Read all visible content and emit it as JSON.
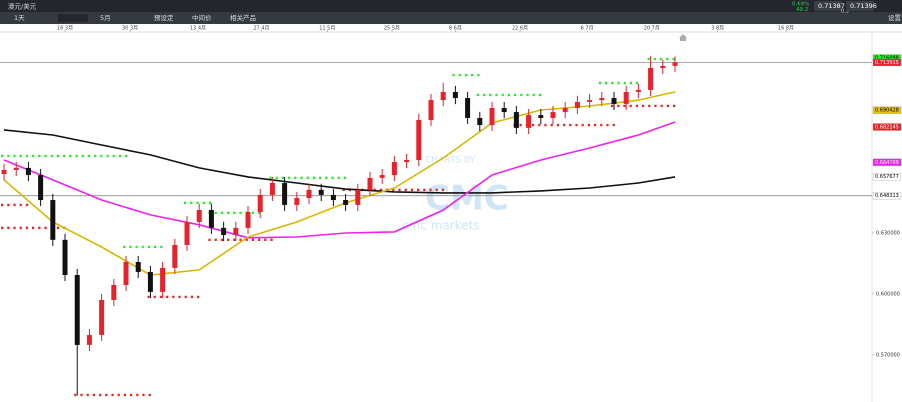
{
  "window": {
    "title": "澳元/美元",
    "change": "0.69%",
    "change_points": "49.2",
    "spread": "0.9",
    "sell": "0.71387",
    "buy": "0.71396",
    "settings": "设置"
  },
  "toolbar": {
    "interval": "1天",
    "range": "5月",
    "items": [
      "预设定",
      "中间价",
      "相关产品"
    ]
  },
  "watermark": {
    "line1": "CHARTS BY",
    "line2": "CMC",
    "line3": "cmc markets"
  },
  "chart_data": {
    "type": "candlestick",
    "xlim": [
      -0.33,
      71.15
    ],
    "xticks": [
      {
        "value": 5.0,
        "label": "16 3月"
      },
      {
        "value": 10.33,
        "label": "30 3月"
      },
      {
        "value": 15.9,
        "label": "13 4月"
      },
      {
        "value": 21.1,
        "label": "27 4月"
      },
      {
        "value": 26.5,
        "label": "11 5月"
      },
      {
        "value": 31.8,
        "label": "25 5月"
      },
      {
        "value": 37.0,
        "label": "8 6月"
      },
      {
        "value": 42.3,
        "label": "22 6月"
      },
      {
        "value": 47.8,
        "label": "6 7月"
      },
      {
        "value": 53.1,
        "label": "20 7月"
      },
      {
        "value": 58.5,
        "label": "3 8月"
      },
      {
        "value": 64.1,
        "label": "16 8月"
      }
    ],
    "ylim": [
      0.5468,
      0.7289
    ],
    "yticks": [
      {
        "value": 0.63,
        "label": "0.630000"
      },
      {
        "value": 0.6,
        "label": "0.600000"
      },
      {
        "value": 0.57,
        "label": "0.570000"
      }
    ],
    "up_color": "#e8222a",
    "down_color": "#111111",
    "open": [
      0.659,
      0.661,
      0.662,
      0.6585,
      0.6462,
      0.6266,
      0.6093,
      0.5749,
      0.5798,
      0.597,
      0.6044,
      0.6157,
      0.6108,
      0.601,
      0.6128,
      0.6241,
      0.6354,
      0.6413,
      0.6325,
      0.629,
      0.6325,
      0.6403,
      0.6487,
      0.6546,
      0.6438,
      0.6472,
      0.6512,
      0.6487,
      0.6462,
      0.6438,
      0.6512,
      0.6571,
      0.6585,
      0.6649,
      0.6659,
      0.6856,
      0.6954,
      0.6994,
      0.6964,
      0.6866,
      0.6831,
      0.6915,
      0.6895,
      0.6817,
      0.688,
      0.6866,
      0.6895,
      0.6915,
      0.6945,
      0.6954,
      0.6964,
      0.6935,
      0.6994,
      0.7004,
      0.7112,
      0.7122
    ],
    "high": [
      0.664,
      0.665,
      0.665,
      0.6615,
      0.6492,
      0.6296,
      0.6123,
      0.5828,
      0.6,
      0.6074,
      0.6187,
      0.6187,
      0.6138,
      0.6158,
      0.6271,
      0.6384,
      0.6443,
      0.6443,
      0.6355,
      0.6355,
      0.6433,
      0.6517,
      0.6576,
      0.6576,
      0.6502,
      0.6542,
      0.6542,
      0.6517,
      0.6492,
      0.6542,
      0.6601,
      0.6615,
      0.6679,
      0.6689,
      0.6886,
      0.6984,
      0.704,
      0.7024,
      0.6994,
      0.6896,
      0.6945,
      0.6945,
      0.6925,
      0.691,
      0.691,
      0.6925,
      0.6945,
      0.6975,
      0.6984,
      0.6994,
      0.6994,
      0.7024,
      0.7034,
      0.717,
      0.7152,
      0.7169
    ],
    "low": [
      0.656,
      0.658,
      0.6555,
      0.6432,
      0.6236,
      0.6063,
      0.55,
      0.5719,
      0.5768,
      0.594,
      0.6014,
      0.6078,
      0.598,
      0.598,
      0.6098,
      0.6211,
      0.6324,
      0.6295,
      0.626,
      0.626,
      0.6295,
      0.6373,
      0.6457,
      0.6408,
      0.6408,
      0.6442,
      0.6457,
      0.6432,
      0.6408,
      0.6408,
      0.6482,
      0.6541,
      0.6555,
      0.6619,
      0.6629,
      0.6826,
      0.6924,
      0.6934,
      0.6836,
      0.6801,
      0.6801,
      0.6865,
      0.6787,
      0.6787,
      0.6836,
      0.6836,
      0.6865,
      0.6885,
      0.6915,
      0.6924,
      0.6905,
      0.6905,
      0.6964,
      0.6974,
      0.7082,
      0.7092
    ],
    "close": [
      0.661,
      0.662,
      0.6585,
      0.6462,
      0.6266,
      0.6093,
      0.5749,
      0.5798,
      0.597,
      0.6044,
      0.6157,
      0.6108,
      0.601,
      0.6128,
      0.6241,
      0.6354,
      0.6413,
      0.6325,
      0.629,
      0.6325,
      0.6403,
      0.6487,
      0.6546,
      0.6438,
      0.6472,
      0.6512,
      0.6487,
      0.6462,
      0.6438,
      0.6512,
      0.6571,
      0.6585,
      0.6649,
      0.6659,
      0.6856,
      0.6954,
      0.6994,
      0.6964,
      0.6866,
      0.6831,
      0.6915,
      0.6895,
      0.6817,
      0.688,
      0.6866,
      0.6895,
      0.6915,
      0.6945,
      0.6954,
      0.6964,
      0.6935,
      0.6994,
      0.7004,
      0.7112,
      0.7122,
      0.7139
    ],
    "series": [
      {
        "color": "#111111",
        "x": [
          0,
          4,
          8,
          12,
          16,
          20,
          24,
          28,
          32,
          36,
          40,
          44,
          48,
          52,
          55
        ],
        "values": [
          0.6807,
          0.6782,
          0.6733,
          0.6684,
          0.662,
          0.6576,
          0.6546,
          0.6516,
          0.6502,
          0.6497,
          0.6497,
          0.6507,
          0.6521,
          0.6546,
          0.6576
        ]
      },
      {
        "color": "#ee22ee",
        "x": [
          0,
          4,
          8,
          12,
          16,
          20,
          24,
          28,
          32,
          36,
          40,
          44,
          48,
          52,
          55
        ],
        "values": [
          0.6659,
          0.6561,
          0.6462,
          0.6389,
          0.634,
          0.6276,
          0.628,
          0.63,
          0.6305,
          0.6413,
          0.6585,
          0.6659,
          0.6718,
          0.6782,
          0.6846
        ]
      },
      {
        "color": "#d9b700",
        "x": [
          0,
          4,
          8,
          12,
          16,
          20,
          24,
          28,
          32,
          36,
          40,
          44,
          48,
          52,
          55
        ],
        "values": [
          0.6561,
          0.6354,
          0.6231,
          0.6093,
          0.6118,
          0.628,
          0.6354,
          0.6448,
          0.6521,
          0.6669,
          0.6841,
          0.6905,
          0.6925,
          0.6954,
          0.6994
        ]
      }
    ],
    "levels": [
      {
        "color": "#22ee22",
        "start": 0,
        "end": 10,
        "value": 0.6679
      },
      {
        "color": "#22ee22",
        "start": 10,
        "end": 13,
        "value": 0.6231
      },
      {
        "color": "#22ee22",
        "start": 15,
        "end": 17,
        "value": 0.6448
      },
      {
        "color": "#22ee22",
        "start": 17,
        "end": 21,
        "value": 0.6399
      },
      {
        "color": "#22ee22",
        "start": 22,
        "end": 28,
        "value": 0.6571
      },
      {
        "color": "#22ee22",
        "start": 37,
        "end": 39,
        "value": 0.7077
      },
      {
        "color": "#22ee22",
        "start": 39,
        "end": 44,
        "value": 0.6979
      },
      {
        "color": "#22ee22",
        "start": 49,
        "end": 52,
        "value": 0.7038
      },
      {
        "color": "#22ee22",
        "start": 53,
        "end": 55,
        "value": 0.7156
      },
      {
        "color": "#ee2222",
        "start": 0,
        "end": 2,
        "value": 0.6438
      },
      {
        "color": "#ee2222",
        "start": 0,
        "end": 5,
        "value": 0.6325
      },
      {
        "color": "#ee2222",
        "start": 6,
        "end": 12,
        "value": 0.5503
      },
      {
        "color": "#ee2222",
        "start": 12,
        "end": 16,
        "value": 0.5985
      },
      {
        "color": "#ee2222",
        "start": 17,
        "end": 22,
        "value": 0.6266
      },
      {
        "color": "#ee2222",
        "start": 28,
        "end": 36,
        "value": 0.6512
      },
      {
        "color": "#ee2222",
        "start": 42,
        "end": 50,
        "value": 0.6831
      },
      {
        "color": "#ee2222",
        "start": 50,
        "end": 55,
        "value": 0.6925
      }
    ],
    "price_tags": [
      {
        "value": 0.716098,
        "label": "0.716098",
        "color": "#22ee22",
        "text_color": "#000000"
      },
      {
        "value": 0.713915,
        "label": "0.713915",
        "color": "#e8222a",
        "text_color": "#ffffff",
        "line": true
      },
      {
        "value": 0.690428,
        "label": "0.690428",
        "color": "#e6c200",
        "text_color": "#000000"
      },
      {
        "value": 0.682145,
        "label": "0.682145",
        "color": "#e8222a",
        "text_color": "#ffffff"
      },
      {
        "value": 0.664789,
        "label": "0.664789",
        "color": "#ee22ee",
        "text_color": "#ffffff"
      },
      {
        "value": 0.657677,
        "label": "0.657677",
        "color": "#ffffff",
        "text_color": "#000000"
      },
      {
        "value": 0.648313,
        "label": "0.648313",
        "color": "#ffffff",
        "text_color": "#000000",
        "line": true
      }
    ]
  }
}
